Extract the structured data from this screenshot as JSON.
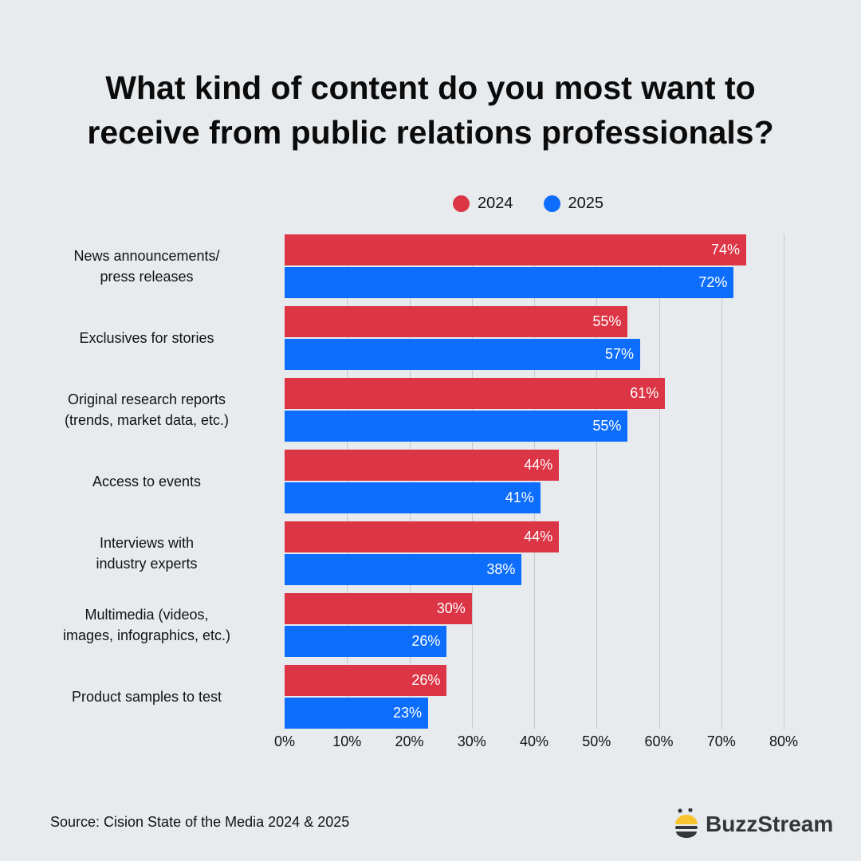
{
  "title_line1": "What kind of content do you most want to",
  "title_line2": "receive from public relations professionals?",
  "legend": [
    {
      "label": "2024",
      "color": "#dc3545"
    },
    {
      "label": "2025",
      "color": "#0d6efd"
    }
  ],
  "source": "Source: Cision State of the Media 2024 & 2025",
  "brand": "BuzzStream",
  "chart_data": {
    "type": "bar",
    "orientation": "horizontal",
    "title": "What kind of content do you most want to receive from public relations professionals?",
    "categories": [
      "News announcements/ press releases",
      "Exclusives for stories",
      "Original research reports (trends, market data, etc.)",
      "Access to events",
      "Interviews with industry experts",
      "Multimedia (videos, images, infographics, etc.)",
      "Product samples to test"
    ],
    "series": [
      {
        "name": "2024",
        "color": "#dc3545",
        "values": [
          74,
          55,
          61,
          44,
          44,
          30,
          26
        ]
      },
      {
        "name": "2025",
        "color": "#0d6efd",
        "values": [
          72,
          57,
          55,
          41,
          38,
          26,
          23
        ]
      }
    ],
    "xlabel": "",
    "ylabel": "",
    "xlim": [
      0,
      80
    ],
    "xticks": [
      "0%",
      "10%",
      "20%",
      "30%",
      "40%",
      "50%",
      "60%",
      "70%",
      "80%"
    ],
    "grid": true,
    "legend_position": "top"
  },
  "category_lines": [
    [
      "News announcements/",
      "press releases"
    ],
    [
      "Exclusives for stories"
    ],
    [
      "Original research reports",
      "(trends, market data, etc.)"
    ],
    [
      "Access to events"
    ],
    [
      "Interviews with",
      "industry experts"
    ],
    [
      "Multimedia (videos,",
      "images, infographics, etc.)"
    ],
    [
      "Product samples to test"
    ]
  ]
}
